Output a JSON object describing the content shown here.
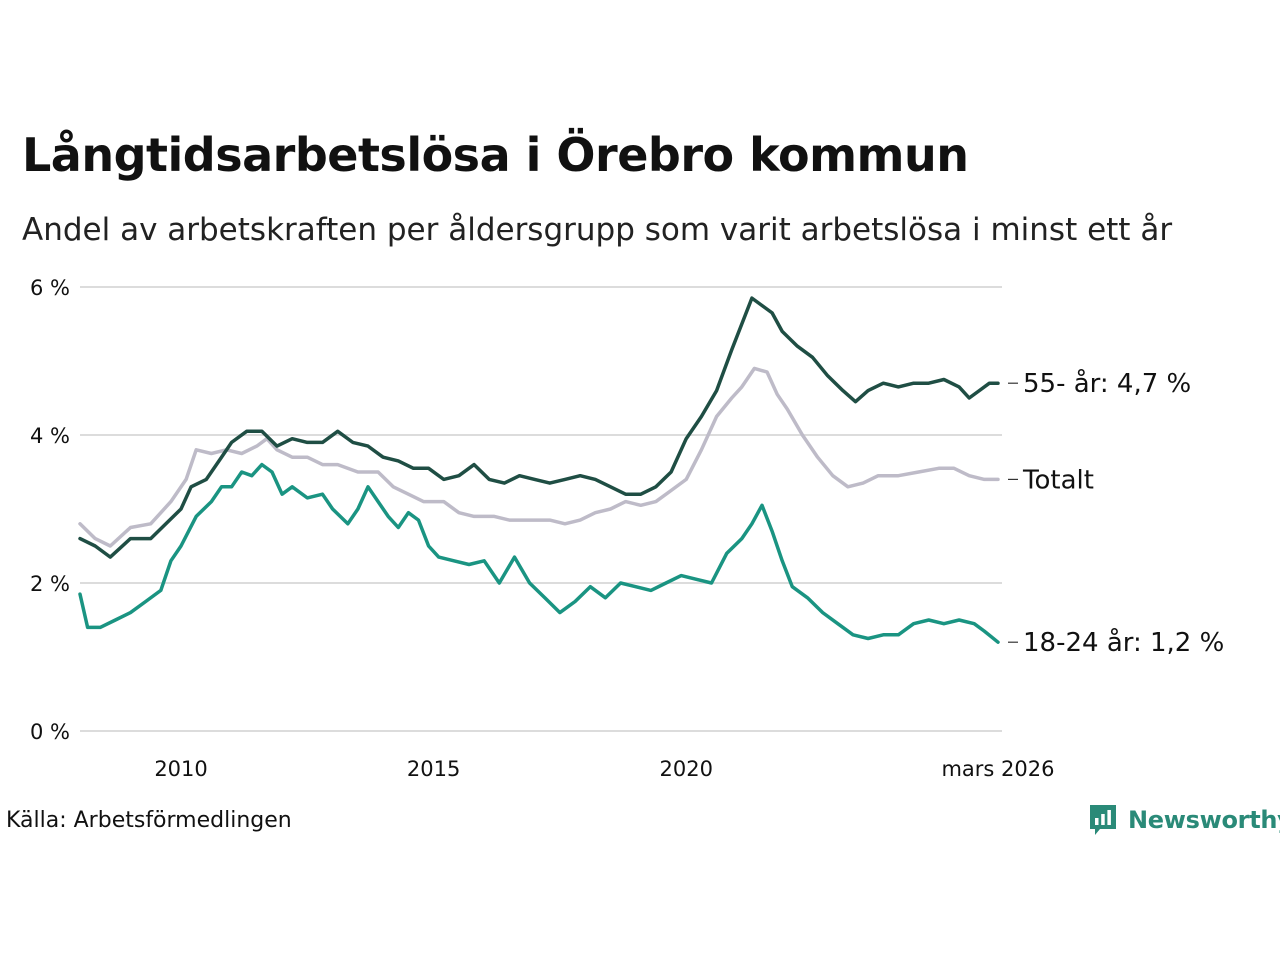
{
  "title": "Långtidsarbetslösa i Örebro kommun",
  "subtitle": "Andel av arbetskraften per åldersgrupp som varit arbetslösa i minst ett år",
  "source": "Källa: Arbetsförmedlingen",
  "brand": {
    "name": "Newsworthy",
    "logo_icon": "bar-chart-icon"
  },
  "colors": {
    "older": "#1f4e44",
    "total": "#bebbc8",
    "young": "#1a9482",
    "grid": "#dcdcdc",
    "brand": "#2a8a78"
  },
  "chart_data": {
    "type": "line",
    "x_unit": "year",
    "xlim": [
      2008.0,
      2026.25
    ],
    "ylim": [
      0,
      6
    ],
    "y_ticks": [
      0,
      2,
      4,
      6
    ],
    "y_tick_labels": [
      "0 %",
      "2 %",
      "4 %",
      "6 %"
    ],
    "x_ticks": [
      2010,
      2015,
      2020,
      2026.17
    ],
    "x_tick_labels": [
      "2010",
      "2015",
      "2020",
      "mars 2026"
    ],
    "grid": true,
    "series": [
      {
        "name": "55- år",
        "label": "55- år: 4,7 %",
        "color_key": "older",
        "points": [
          [
            2008.0,
            2.6
          ],
          [
            2008.3,
            2.5
          ],
          [
            2008.6,
            2.35
          ],
          [
            2009.0,
            2.6
          ],
          [
            2009.4,
            2.6
          ],
          [
            2009.7,
            2.8
          ],
          [
            2010.0,
            3.0
          ],
          [
            2010.2,
            3.3
          ],
          [
            2010.5,
            3.4
          ],
          [
            2010.8,
            3.7
          ],
          [
            2011.0,
            3.9
          ],
          [
            2011.3,
            4.05
          ],
          [
            2011.6,
            4.05
          ],
          [
            2011.9,
            3.85
          ],
          [
            2012.2,
            3.95
          ],
          [
            2012.5,
            3.9
          ],
          [
            2012.8,
            3.9
          ],
          [
            2013.1,
            4.05
          ],
          [
            2013.4,
            3.9
          ],
          [
            2013.7,
            3.85
          ],
          [
            2014.0,
            3.7
          ],
          [
            2014.3,
            3.65
          ],
          [
            2014.6,
            3.55
          ],
          [
            2014.9,
            3.55
          ],
          [
            2015.2,
            3.4
          ],
          [
            2015.5,
            3.45
          ],
          [
            2015.8,
            3.6
          ],
          [
            2016.1,
            3.4
          ],
          [
            2016.4,
            3.35
          ],
          [
            2016.7,
            3.45
          ],
          [
            2017.0,
            3.4
          ],
          [
            2017.3,
            3.35
          ],
          [
            2017.6,
            3.4
          ],
          [
            2017.9,
            3.45
          ],
          [
            2018.2,
            3.4
          ],
          [
            2018.5,
            3.3
          ],
          [
            2018.8,
            3.2
          ],
          [
            2019.1,
            3.2
          ],
          [
            2019.4,
            3.3
          ],
          [
            2019.7,
            3.5
          ],
          [
            2020.0,
            3.95
          ],
          [
            2020.3,
            4.25
          ],
          [
            2020.6,
            4.6
          ],
          [
            2020.9,
            5.15
          ],
          [
            2021.1,
            5.5
          ],
          [
            2021.3,
            5.85
          ],
          [
            2021.5,
            5.75
          ],
          [
            2021.7,
            5.65
          ],
          [
            2021.9,
            5.4
          ],
          [
            2022.2,
            5.2
          ],
          [
            2022.5,
            5.05
          ],
          [
            2022.8,
            4.8
          ],
          [
            2023.1,
            4.6
          ],
          [
            2023.35,
            4.45
          ],
          [
            2023.6,
            4.6
          ],
          [
            2023.9,
            4.7
          ],
          [
            2024.2,
            4.65
          ],
          [
            2024.5,
            4.7
          ],
          [
            2024.8,
            4.7
          ],
          [
            2025.1,
            4.75
          ],
          [
            2025.4,
            4.65
          ],
          [
            2025.6,
            4.5
          ],
          [
            2025.8,
            4.6
          ],
          [
            2026.0,
            4.7
          ],
          [
            2026.17,
            4.7
          ]
        ]
      },
      {
        "name": "Totalt",
        "label": "Totalt",
        "color_key": "total",
        "points": [
          [
            2008.0,
            2.8
          ],
          [
            2008.3,
            2.6
          ],
          [
            2008.6,
            2.5
          ],
          [
            2009.0,
            2.75
          ],
          [
            2009.4,
            2.8
          ],
          [
            2009.8,
            3.1
          ],
          [
            2010.1,
            3.4
          ],
          [
            2010.3,
            3.8
          ],
          [
            2010.6,
            3.75
          ],
          [
            2010.9,
            3.8
          ],
          [
            2011.2,
            3.75
          ],
          [
            2011.5,
            3.85
          ],
          [
            2011.7,
            3.95
          ],
          [
            2011.9,
            3.8
          ],
          [
            2012.2,
            3.7
          ],
          [
            2012.5,
            3.7
          ],
          [
            2012.8,
            3.6
          ],
          [
            2013.1,
            3.6
          ],
          [
            2013.5,
            3.5
          ],
          [
            2013.9,
            3.5
          ],
          [
            2014.2,
            3.3
          ],
          [
            2014.5,
            3.2
          ],
          [
            2014.8,
            3.1
          ],
          [
            2015.2,
            3.1
          ],
          [
            2015.5,
            2.95
          ],
          [
            2015.8,
            2.9
          ],
          [
            2016.2,
            2.9
          ],
          [
            2016.5,
            2.85
          ],
          [
            2016.9,
            2.85
          ],
          [
            2017.3,
            2.85
          ],
          [
            2017.6,
            2.8
          ],
          [
            2017.9,
            2.85
          ],
          [
            2018.2,
            2.95
          ],
          [
            2018.5,
            3.0
          ],
          [
            2018.8,
            3.1
          ],
          [
            2019.1,
            3.05
          ],
          [
            2019.4,
            3.1
          ],
          [
            2019.7,
            3.25
          ],
          [
            2020.0,
            3.4
          ],
          [
            2020.3,
            3.8
          ],
          [
            2020.6,
            4.25
          ],
          [
            2020.9,
            4.5
          ],
          [
            2021.1,
            4.65
          ],
          [
            2021.35,
            4.9
          ],
          [
            2021.6,
            4.85
          ],
          [
            2021.8,
            4.55
          ],
          [
            2022.0,
            4.35
          ],
          [
            2022.3,
            4.0
          ],
          [
            2022.6,
            3.7
          ],
          [
            2022.9,
            3.45
          ],
          [
            2023.2,
            3.3
          ],
          [
            2023.5,
            3.35
          ],
          [
            2023.8,
            3.45
          ],
          [
            2024.2,
            3.45
          ],
          [
            2024.6,
            3.5
          ],
          [
            2025.0,
            3.55
          ],
          [
            2025.3,
            3.55
          ],
          [
            2025.6,
            3.45
          ],
          [
            2025.9,
            3.4
          ],
          [
            2026.17,
            3.4
          ]
        ]
      },
      {
        "name": "18-24 år",
        "label": "18-24 år: 1,2 %",
        "color_key": "young",
        "points": [
          [
            2008.0,
            1.85
          ],
          [
            2008.15,
            1.4
          ],
          [
            2008.4,
            1.4
          ],
          [
            2008.7,
            1.5
          ],
          [
            2009.0,
            1.6
          ],
          [
            2009.3,
            1.75
          ],
          [
            2009.6,
            1.9
          ],
          [
            2009.8,
            2.3
          ],
          [
            2010.0,
            2.5
          ],
          [
            2010.3,
            2.9
          ],
          [
            2010.6,
            3.1
          ],
          [
            2010.8,
            3.3
          ],
          [
            2011.0,
            3.3
          ],
          [
            2011.2,
            3.5
          ],
          [
            2011.4,
            3.45
          ],
          [
            2011.6,
            3.6
          ],
          [
            2011.8,
            3.5
          ],
          [
            2012.0,
            3.2
          ],
          [
            2012.2,
            3.3
          ],
          [
            2012.5,
            3.15
          ],
          [
            2012.8,
            3.2
          ],
          [
            2013.0,
            3.0
          ],
          [
            2013.3,
            2.8
          ],
          [
            2013.5,
            3.0
          ],
          [
            2013.7,
            3.3
          ],
          [
            2013.9,
            3.1
          ],
          [
            2014.1,
            2.9
          ],
          [
            2014.3,
            2.75
          ],
          [
            2014.5,
            2.95
          ],
          [
            2014.7,
            2.85
          ],
          [
            2014.9,
            2.5
          ],
          [
            2015.1,
            2.35
          ],
          [
            2015.4,
            2.3
          ],
          [
            2015.7,
            2.25
          ],
          [
            2016.0,
            2.3
          ],
          [
            2016.3,
            2.0
          ],
          [
            2016.6,
            2.35
          ],
          [
            2016.9,
            2.0
          ],
          [
            2017.2,
            1.8
          ],
          [
            2017.5,
            1.6
          ],
          [
            2017.8,
            1.75
          ],
          [
            2018.1,
            1.95
          ],
          [
            2018.4,
            1.8
          ],
          [
            2018.7,
            2.0
          ],
          [
            2019.0,
            1.95
          ],
          [
            2019.3,
            1.9
          ],
          [
            2019.6,
            2.0
          ],
          [
            2019.9,
            2.1
          ],
          [
            2020.2,
            2.05
          ],
          [
            2020.5,
            2.0
          ],
          [
            2020.8,
            2.4
          ],
          [
            2021.1,
            2.6
          ],
          [
            2021.3,
            2.8
          ],
          [
            2021.5,
            3.05
          ],
          [
            2021.7,
            2.7
          ],
          [
            2021.9,
            2.3
          ],
          [
            2022.1,
            1.95
          ],
          [
            2022.4,
            1.8
          ],
          [
            2022.7,
            1.6
          ],
          [
            2023.0,
            1.45
          ],
          [
            2023.3,
            1.3
          ],
          [
            2023.6,
            1.25
          ],
          [
            2023.9,
            1.3
          ],
          [
            2024.2,
            1.3
          ],
          [
            2024.5,
            1.45
          ],
          [
            2024.8,
            1.5
          ],
          [
            2025.1,
            1.45
          ],
          [
            2025.4,
            1.5
          ],
          [
            2025.7,
            1.45
          ],
          [
            2025.9,
            1.35
          ],
          [
            2026.17,
            1.2
          ]
        ]
      }
    ]
  }
}
